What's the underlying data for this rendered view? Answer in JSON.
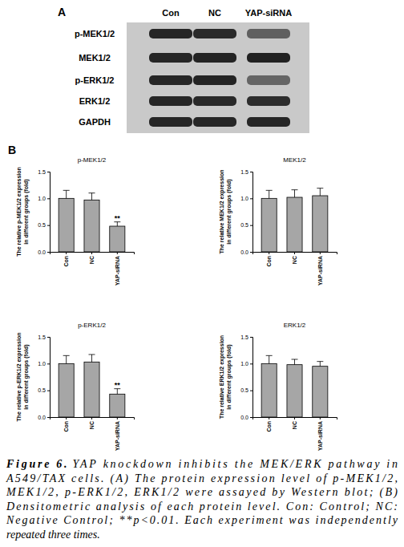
{
  "panel_labels": [
    "A",
    "B"
  ],
  "blot": {
    "lanes": [
      "Con",
      "NC",
      "YAP-siRNA"
    ],
    "rows": [
      "p-MEK1/2",
      "MEK1/2",
      "p-ERK1/2",
      "ERK1/2",
      "GAPDH"
    ]
  },
  "chart_data": [
    {
      "type": "bar",
      "title": "p-MEK1/2",
      "y_label": [
        "The relative p-MEK1/2 expression",
        "in different groups (fold)"
      ],
      "categories": [
        "Con",
        "NC",
        "YAP-siRNA"
      ],
      "values": [
        1.0,
        0.97,
        0.48
      ],
      "errors": [
        0.15,
        0.13,
        0.08
      ],
      "color": "#a6a6a6",
      "ylim": [
        0,
        1.5
      ],
      "yticks": [
        {
          "value": 0,
          "label": "0.0"
        },
        {
          "value": 0.5,
          "label": "0.5"
        },
        {
          "value": 1,
          "label": "1.0"
        },
        {
          "value": 1.5,
          "label": "1.5"
        }
      ],
      "annotations": [
        {
          "category": "YAP-siRNA",
          "text": "**"
        }
      ]
    },
    {
      "type": "bar",
      "title": "MEK1/2",
      "y_label": [
        "The relative MEK1/2 expression",
        "in different groups (fold)"
      ],
      "categories": [
        "Con",
        "NC",
        "YAP-siRNA"
      ],
      "values": [
        1.0,
        1.02,
        1.05
      ],
      "errors": [
        0.15,
        0.14,
        0.14
      ],
      "color": "#a6a6a6",
      "ylim": [
        0,
        1.5
      ],
      "yticks": [
        {
          "value": 0,
          "label": "0.0"
        },
        {
          "value": 0.5,
          "label": "0.5"
        },
        {
          "value": 1,
          "label": "1.0"
        },
        {
          "value": 1.5,
          "label": "1.5"
        }
      ]
    },
    {
      "type": "bar",
      "title": "p-ERK1/2",
      "y_label": [
        "The relative p-ERK1/2 expression",
        "in different groups (fold)"
      ],
      "categories": [
        "Con",
        "NC",
        "YAP-siRNA"
      ],
      "values": [
        1.0,
        1.03,
        0.43
      ],
      "errors": [
        0.15,
        0.14,
        0.1
      ],
      "color": "#a6a6a6",
      "ylim": [
        0,
        1.5
      ],
      "yticks": [
        {
          "value": 0,
          "label": "0.0"
        },
        {
          "value": 0.5,
          "label": "0.5"
        },
        {
          "value": 1,
          "label": "1.0"
        },
        {
          "value": 1.5,
          "label": "1.5"
        }
      ],
      "annotations": [
        {
          "category": "YAP-siRNA",
          "text": "**"
        }
      ]
    },
    {
      "type": "bar",
      "title": "ERK1/2",
      "y_label": [
        "The relative ERK1/2 expression",
        "in different groups (fold)"
      ],
      "categories": [
        "Con",
        "NC",
        "YAP-siRNA"
      ],
      "values": [
        1.0,
        0.98,
        0.95
      ],
      "errors": [
        0.15,
        0.1,
        0.09
      ],
      "color": "#a6a6a6",
      "ylim": [
        0,
        1.5
      ],
      "yticks": [
        {
          "value": 0,
          "label": "0.0"
        },
        {
          "value": 0.5,
          "label": "0.5"
        },
        {
          "value": 1,
          "label": "1.0"
        },
        {
          "value": 1.5,
          "label": "1.5"
        }
      ]
    }
  ],
  "caption": {
    "label": "Figure 6.",
    "lines": [
      "YAP knockdown inhibits the MEK/ERK pathway in",
      "A549/TAX cells. (A) The protein expression level of p-MEK1/2,",
      "MEK1/2, p-ERK1/2, ERK1/2 were assayed by Western blot; (B)",
      "Densitometric analysis of each protein level. Con: Control; NC:",
      "Negative Control; **p<0.01. Each experiment was independently",
      "repeated three times."
    ]
  }
}
